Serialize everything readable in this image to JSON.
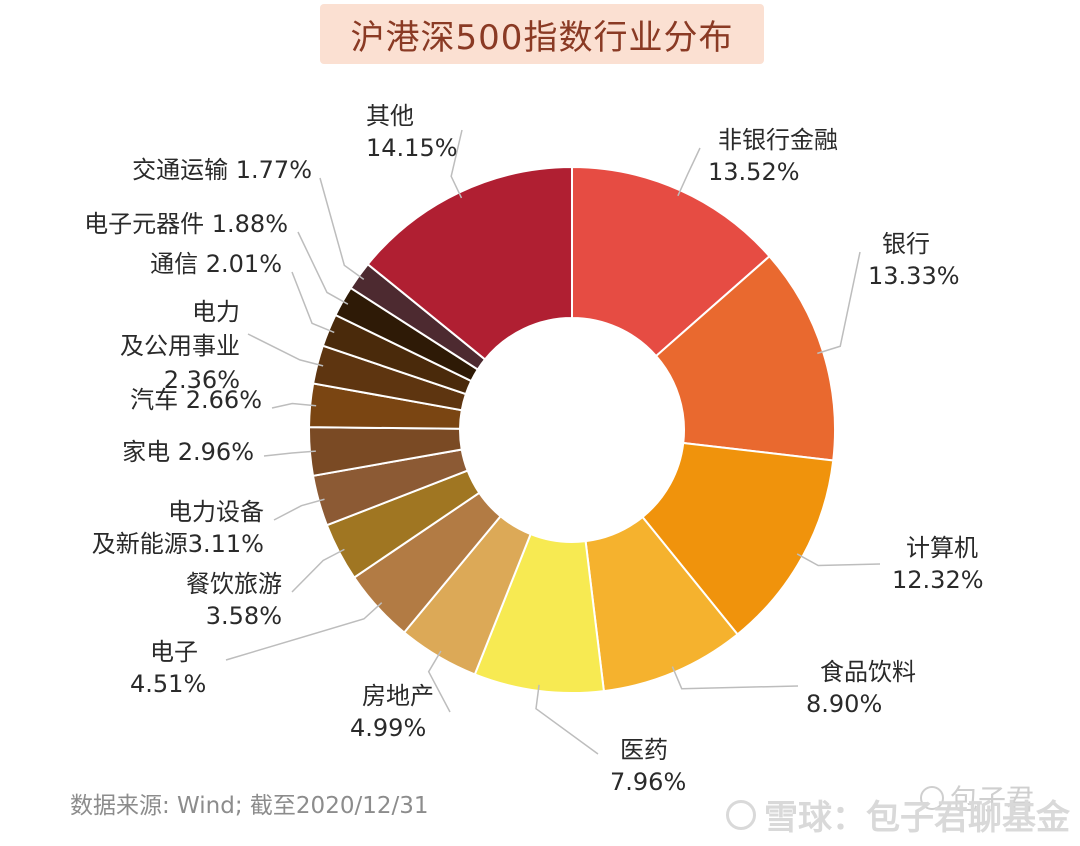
{
  "title": "沪港深500指数行业分布",
  "source": "数据来源: Wind; 截至2020/12/31",
  "watermark": {
    "small": "包子君",
    "large": "雪球：包子君聊基金"
  },
  "chart_data": {
    "type": "pie",
    "donut": true,
    "slices": [
      {
        "name": "非银行金融",
        "pct": "13.52%",
        "value": 13.52,
        "color": "#e64c43"
      },
      {
        "name": "银行",
        "pct": "13.33%",
        "value": 13.33,
        "color": "#e9692f"
      },
      {
        "name": "计算机",
        "pct": "12.32%",
        "value": 12.32,
        "color": "#f0930c"
      },
      {
        "name": "食品饮料",
        "pct": "8.90%",
        "value": 8.9,
        "color": "#f5b22e"
      },
      {
        "name": "医药",
        "pct": "7.96%",
        "value": 7.96,
        "color": "#f7ea52"
      },
      {
        "name": "房地产",
        "pct": "4.99%",
        "value": 4.99,
        "color": "#dca957"
      },
      {
        "name": "电子",
        "pct": "4.51%",
        "value": 4.51,
        "color": "#b27b44"
      },
      {
        "name": "餐饮旅游",
        "pct": "3.58%",
        "value": 3.58,
        "color": "#a07622"
      },
      {
        "name": "电力设备\n及新能源",
        "pct": "3.11%",
        "value": 3.11,
        "color": "#8c5a34"
      },
      {
        "name": "家电",
        "pct": "2.96%",
        "value": 2.96,
        "color": "#7a4a24"
      },
      {
        "name": "汽车",
        "pct": "2.66%",
        "value": 2.66,
        "color": "#7a4512"
      },
      {
        "name": "电力\n及公用事业",
        "pct": "2.36%",
        "value": 2.36,
        "color": "#5e3510"
      },
      {
        "name": "通信",
        "pct": "2.01%",
        "value": 2.01,
        "color": "#4a2a0b"
      },
      {
        "name": "电子元器件",
        "pct": "1.88%",
        "value": 1.88,
        "color": "#2e1a06"
      },
      {
        "name": "交通运输",
        "pct": "1.77%",
        "value": 1.77,
        "color": "#4d2a30"
      },
      {
        "name": "其他",
        "pct": "14.15%",
        "value": 14.15,
        "color": "#b01f32"
      }
    ]
  }
}
